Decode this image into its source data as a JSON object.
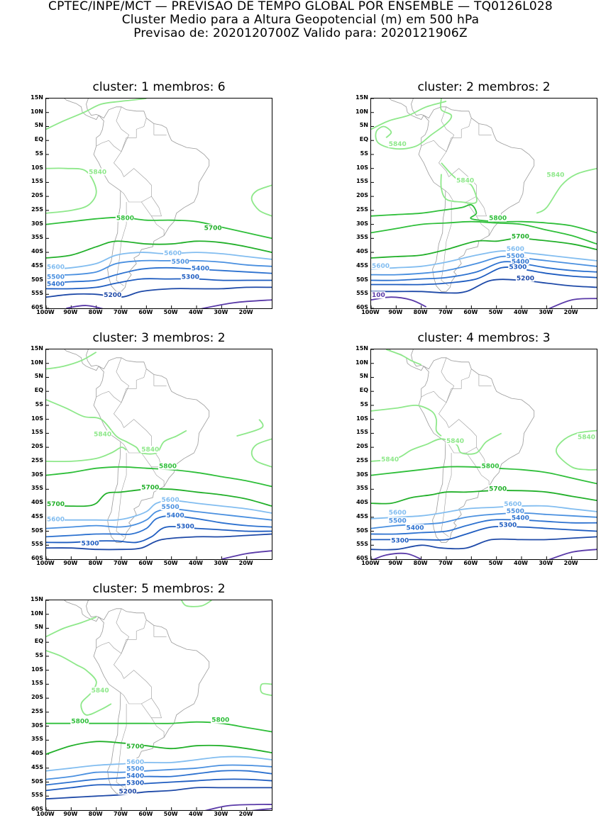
{
  "header": {
    "line1": "CPTEC/INPE/MCT — PREVISAO DE TEMPO GLOBAL POR ENSEMBLE — TQ0126L028",
    "line2": "Cluster Medio para a Altura Geopotencial (m) em 500 hPa",
    "line3": "Previsao de: 2020120700Z   Valido para: 2020121906Z"
  },
  "lat_labels": [
    "15N",
    "10N",
    "5N",
    "EQ",
    "5S",
    "10S",
    "15S",
    "20S",
    "25S",
    "30S",
    "35S",
    "40S",
    "45S",
    "50S",
    "55S",
    "60S"
  ],
  "lon_labels": [
    "100W",
    "90W",
    "80W",
    "70W",
    "60W",
    "50W",
    "40W",
    "30W",
    "20W"
  ],
  "colors": {
    "c5200": "#1f4aa8",
    "c5300": "#1e5cc0",
    "c5400": "#2d72d0",
    "c5500": "#4a90e0",
    "c5600": "#82bdf0",
    "c5700": "#22b02a",
    "c5800": "#2fbf3a",
    "c5840": "#8ee88a",
    "c5100": "#5a3aa8",
    "land": "#9a9a9a"
  },
  "panels": [
    {
      "title": "cluster: 1   membros: 6",
      "labels": [
        {
          "t": "5840",
          "c": "c5840"
        },
        {
          "t": "5800",
          "c": "c5800"
        },
        {
          "t": "5700",
          "c": "c5700"
        },
        {
          "t": "5600",
          "c": "c5600"
        },
        {
          "t": "5600",
          "c": "c5600"
        },
        {
          "t": "5500",
          "c": "c5500"
        },
        {
          "t": "5500",
          "c": "c5500"
        },
        {
          "t": "5400",
          "c": "c5400"
        },
        {
          "t": "5400",
          "c": "c5400"
        },
        {
          "t": "5300",
          "c": "c5300"
        },
        {
          "t": "5200",
          "c": "c5200"
        }
      ]
    },
    {
      "title": "cluster: 2   membros: 2",
      "labels": [
        {
          "t": "5840",
          "c": "c5840"
        },
        {
          "t": "5840",
          "c": "c5840"
        },
        {
          "t": "5840",
          "c": "c5840"
        },
        {
          "t": "5800",
          "c": "c5800"
        },
        {
          "t": "5700",
          "c": "c5700"
        },
        {
          "t": "5600",
          "c": "c5600"
        },
        {
          "t": "5600",
          "c": "c5600"
        },
        {
          "t": "5500",
          "c": "c5500"
        },
        {
          "t": "5400",
          "c": "c5400"
        },
        {
          "t": "5300",
          "c": "c5300"
        },
        {
          "t": "5200",
          "c": "c5200"
        },
        {
          "t": "100",
          "c": "c5100"
        }
      ]
    },
    {
      "title": "cluster: 3   membros: 2",
      "labels": [
        {
          "t": "5840",
          "c": "c5840"
        },
        {
          "t": "5840",
          "c": "c5840"
        },
        {
          "t": "5800",
          "c": "c5800"
        },
        {
          "t": "5700",
          "c": "c5700"
        },
        {
          "t": "5700",
          "c": "c5700"
        },
        {
          "t": "5600",
          "c": "c5600"
        },
        {
          "t": "5600",
          "c": "c5600"
        },
        {
          "t": "5500",
          "c": "c5500"
        },
        {
          "t": "5400",
          "c": "c5400"
        },
        {
          "t": "5300",
          "c": "c5300"
        },
        {
          "t": "5300",
          "c": "c5300"
        }
      ]
    },
    {
      "title": "cluster: 4   membros: 3",
      "labels": [
        {
          "t": "5840",
          "c": "c5840"
        },
        {
          "t": "5840",
          "c": "c5840"
        },
        {
          "t": "5840",
          "c": "c5840"
        },
        {
          "t": "5800",
          "c": "c5800"
        },
        {
          "t": "5700",
          "c": "c5700"
        },
        {
          "t": "5600",
          "c": "c5600"
        },
        {
          "t": "5600",
          "c": "c5600"
        },
        {
          "t": "5500",
          "c": "c5500"
        },
        {
          "t": "5500",
          "c": "c5500"
        },
        {
          "t": "5400",
          "c": "c5400"
        },
        {
          "t": "5400",
          "c": "c5400"
        },
        {
          "t": "5300",
          "c": "c5300"
        },
        {
          "t": "5300",
          "c": "c5300"
        }
      ]
    },
    {
      "title": "cluster: 5   membros: 2",
      "labels": [
        {
          "t": "5840",
          "c": "c5840"
        },
        {
          "t": "5800",
          "c": "c5800"
        },
        {
          "t": "5800",
          "c": "c5800"
        },
        {
          "t": "5700",
          "c": "c5700"
        },
        {
          "t": "5600",
          "c": "c5600"
        },
        {
          "t": "5500",
          "c": "c5500"
        },
        {
          "t": "5400",
          "c": "c5400"
        },
        {
          "t": "5300",
          "c": "c5300"
        },
        {
          "t": "5200",
          "c": "c5200"
        }
      ]
    }
  ]
}
